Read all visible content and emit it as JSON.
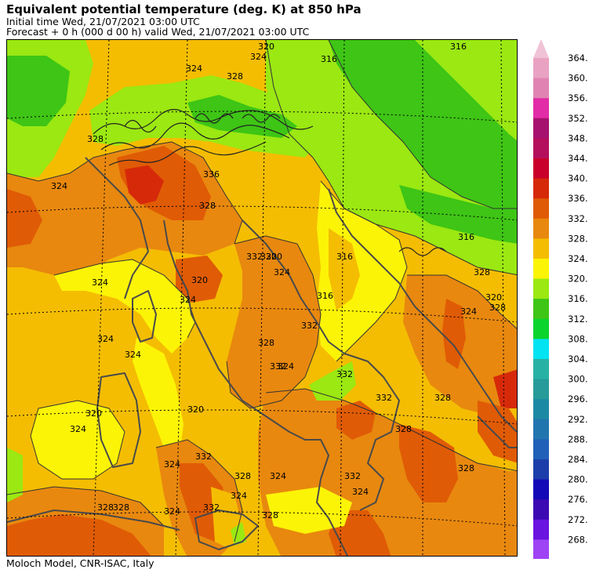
{
  "title": "Equivalent potential temperature (deg. K) at 850 hPa",
  "initial_time": "Initial time  Wed, 21/07/2021  03:00 UTC",
  "forecast": "Forecast  +   0 h  (000 d 00 h)  valid Wed, 21/07/2021 03:00 UTC",
  "footer": "Moloch Model, CNR-ISAC, Italy",
  "colorbar": {
    "labels": [
      "364.",
      "360.",
      "356.",
      "352.",
      "348.",
      "344.",
      "340.",
      "336.",
      "332.",
      "328.",
      "324.",
      "320.",
      "316.",
      "312.",
      "308.",
      "304.",
      "300.",
      "296.",
      "292.",
      "288.",
      "284.",
      "280.",
      "276.",
      "272.",
      "268."
    ],
    "colors": [
      "#e9a2c2",
      "#e083b3",
      "#e22ba6",
      "#a6116f",
      "#b40f5c",
      "#c9002b",
      "#d6290a",
      "#e05b05",
      "#e8880f",
      "#f4bd02",
      "#fcf406",
      "#9be812",
      "#3ec515",
      "#0bd42c",
      "#03e3f1",
      "#27b1a4",
      "#269b9a",
      "#1c89a4",
      "#2175af",
      "#2060b8",
      "#1b3eaa",
      "#1309b6",
      "#3c0ab2",
      "#6a14e0",
      "#9e44f5"
    ],
    "top_arrow_color": "#f0c2d6",
    "bottom_arrow_color": "#c487f7"
  },
  "contour_labels": [
    "320",
    "316",
    "316",
    "324",
    "324",
    "328",
    "328",
    "336",
    "324",
    "328",
    "332",
    "316",
    "320",
    "324",
    "324",
    "320",
    "320",
    "324",
    "316",
    "324",
    "324",
    "332",
    "328",
    "332",
    "324",
    "332",
    "328",
    "328",
    "328",
    "332",
    "320",
    "320",
    "324",
    "332",
    "324",
    "328",
    "324",
    "328",
    "332",
    "328",
    "328",
    "324",
    "324",
    "332",
    "324",
    "328",
    "316",
    "320",
    "328",
    "324"
  ]
}
